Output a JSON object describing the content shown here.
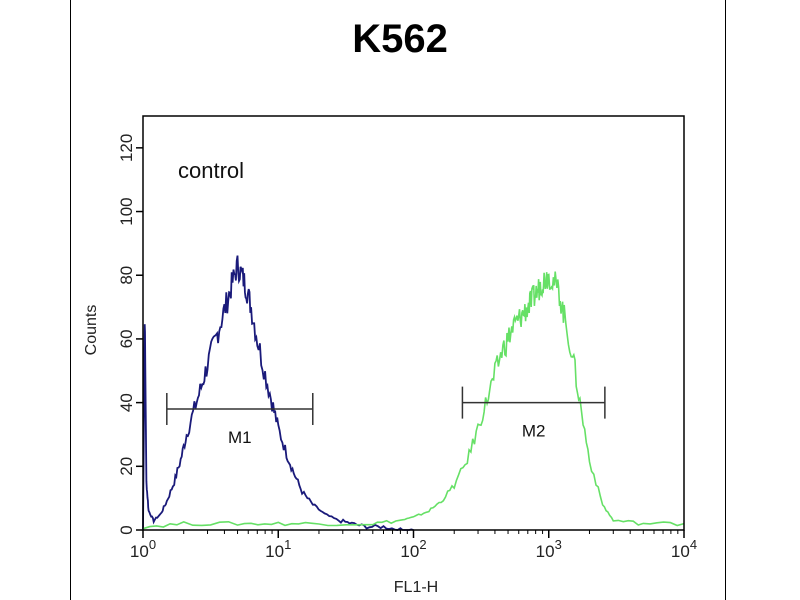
{
  "chart_data": {
    "type": "line",
    "title": "K562",
    "xlabel": "FL1-H",
    "ylabel": "Counts",
    "xscale": "log",
    "xlim": [
      1,
      10000
    ],
    "ylim": [
      0,
      130
    ],
    "x_ticks": [
      {
        "value": 1,
        "base": "10",
        "exp": "0"
      },
      {
        "value": 10,
        "base": "10",
        "exp": "1"
      },
      {
        "value": 100,
        "base": "10",
        "exp": "2"
      },
      {
        "value": 1000,
        "base": "10",
        "exp": "3"
      },
      {
        "value": 10000,
        "base": "10",
        "exp": "4"
      }
    ],
    "y_ticks": [
      0,
      20,
      40,
      60,
      80,
      100,
      120
    ],
    "annotation": "control",
    "series": [
      {
        "color": "#1a1a7a",
        "x": [
          1.0,
          1.03,
          1.06,
          1.1,
          1.2,
          1.35,
          1.5,
          1.7,
          1.9,
          2.1,
          2.4,
          2.7,
          3.0,
          3.4,
          3.8,
          4.2,
          4.6,
          5.0,
          5.4,
          5.8,
          6.3,
          7.0,
          8.0,
          9.0,
          10.0,
          11.5,
          13,
          15,
          18,
          22,
          28,
          35,
          45,
          60,
          80,
          100
        ],
        "values": [
          0,
          68,
          15,
          6,
          3,
          5,
          9,
          15,
          22,
          30,
          38,
          45,
          52,
          59,
          66,
          72,
          78,
          83,
          80,
          76,
          70,
          60,
          49,
          40,
          32,
          24,
          18,
          12,
          8,
          5,
          3,
          2,
          1,
          1,
          0,
          0
        ]
      },
      {
        "color": "#66e066",
        "x": [
          1.0,
          2,
          5,
          10,
          20,
          50,
          80,
          100,
          130,
          160,
          200,
          250,
          300,
          350,
          400,
          450,
          500,
          550,
          600,
          650,
          700,
          750,
          800,
          850,
          900,
          950,
          1000,
          1100,
          1200,
          1300,
          1500,
          1700,
          2000,
          2500,
          3000,
          5000,
          10000
        ],
        "values": [
          1,
          2,
          2,
          2,
          2,
          2,
          3,
          4,
          6,
          9,
          14,
          22,
          32,
          41,
          49,
          56,
          60,
          64,
          66,
          68,
          70,
          72,
          74,
          76,
          78,
          79,
          80,
          78,
          74,
          67,
          55,
          40,
          22,
          8,
          3,
          2,
          2
        ]
      }
    ],
    "gates": [
      {
        "label": "M1",
        "x_start": 1.5,
        "x_end": 18,
        "y": 38
      },
      {
        "label": "M2",
        "x_start": 230,
        "x_end": 2600,
        "y": 40
      }
    ]
  }
}
